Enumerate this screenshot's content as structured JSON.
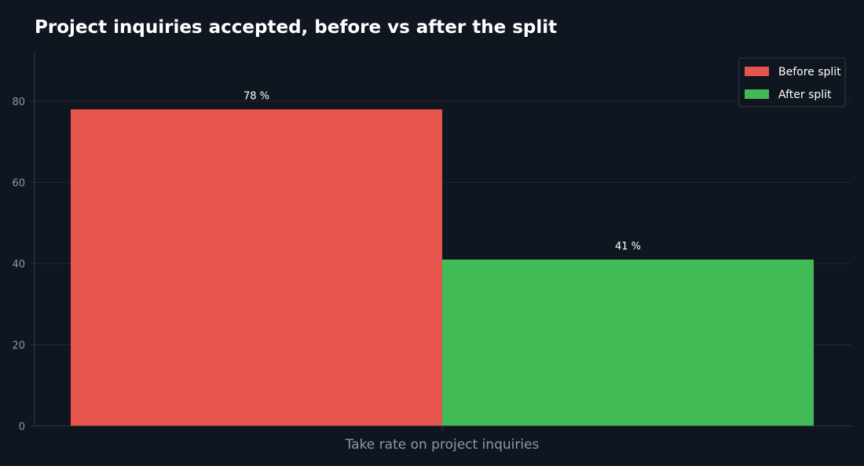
{
  "chart_data": {
    "type": "bar",
    "title": "Project inquiries accepted, before vs after the split",
    "categories": [
      "Take rate on project inquiries"
    ],
    "series": [
      {
        "name": "Before split",
        "values": [
          78
        ],
        "label": "78 %",
        "color": "#e5554b"
      },
      {
        "name": "After split",
        "values": [
          41
        ],
        "label": "41 %",
        "color": "#41bb55"
      }
    ],
    "ylim": [
      0,
      92
    ],
    "yticks": [
      0,
      20,
      40,
      60,
      80
    ],
    "grid": true,
    "legend_position": "top-right",
    "colors": {
      "background": "#0f1620",
      "grid": "#1f2a35",
      "axis": "#2e3a46",
      "text": "#ffffff",
      "muted": "#8d98a6"
    }
  }
}
